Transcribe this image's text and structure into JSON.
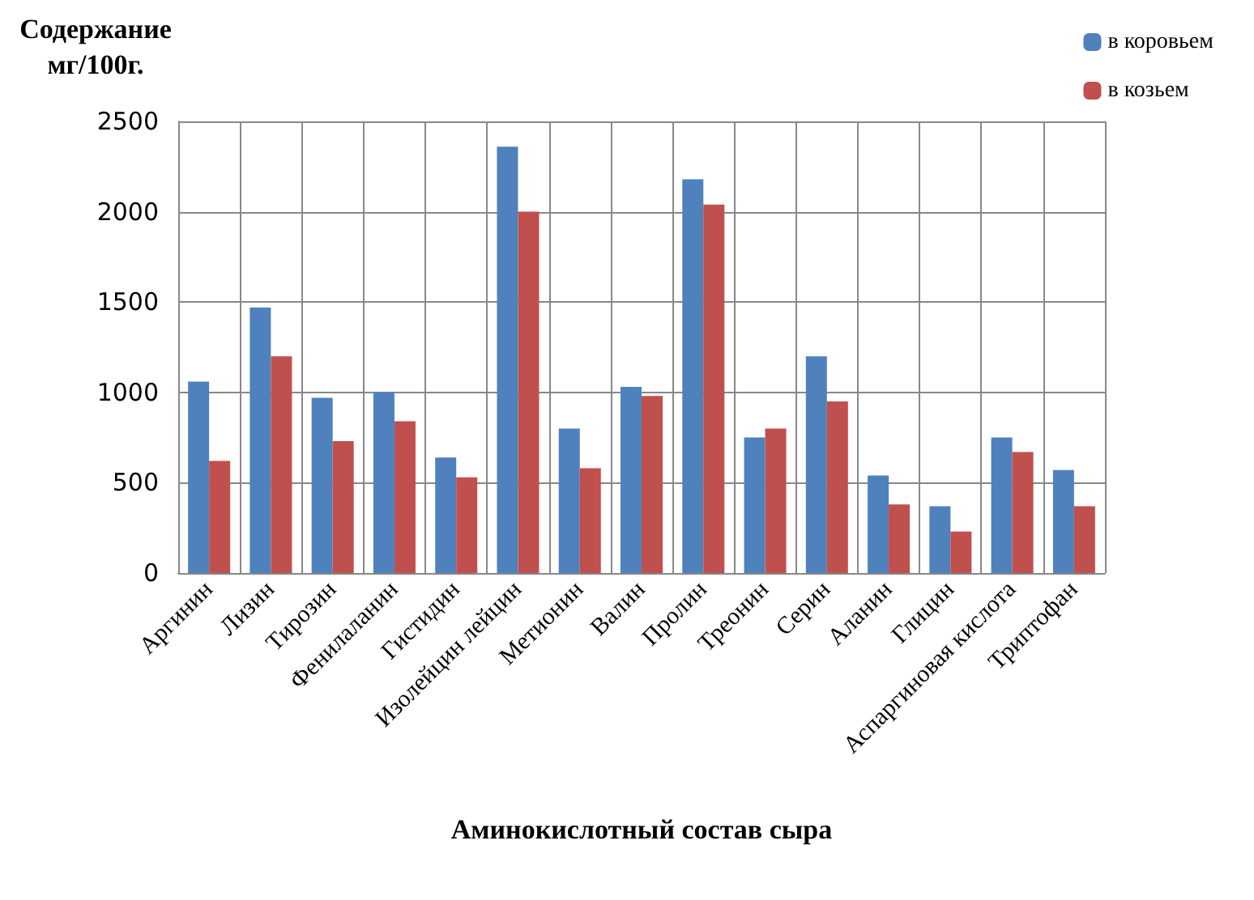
{
  "chart_data": {
    "type": "bar",
    "ylabel": "Содержание\nмг/100г.",
    "xlabel": "Аминокислотный состав сыра",
    "categories": [
      "Аргинин",
      "Лизин",
      "Тирозин",
      "Фенилаланин",
      "Гистидин",
      "Изолейцин лейцин",
      "Метионин",
      "Валин",
      "Пролин",
      "Треонин",
      "Серин",
      "Аланин",
      "Глицин",
      "Аспаргиновая кислота",
      "Триптофан"
    ],
    "series": [
      {
        "name": "в коровьем",
        "color": "#4f81bd",
        "values": [
          1060,
          1470,
          970,
          1000,
          640,
          2360,
          800,
          1030,
          2180,
          750,
          1200,
          540,
          370,
          750,
          570
        ]
      },
      {
        "name": "в козьем",
        "color": "#c0504d",
        "values": [
          620,
          1200,
          730,
          840,
          530,
          2000,
          580,
          980,
          2040,
          800,
          950,
          380,
          230,
          670,
          370
        ]
      }
    ],
    "ylim": [
      0,
      2500
    ],
    "yticks": [
      0,
      500,
      1000,
      1500,
      2000,
      2500
    ],
    "grid": true,
    "legend": "top right"
  }
}
